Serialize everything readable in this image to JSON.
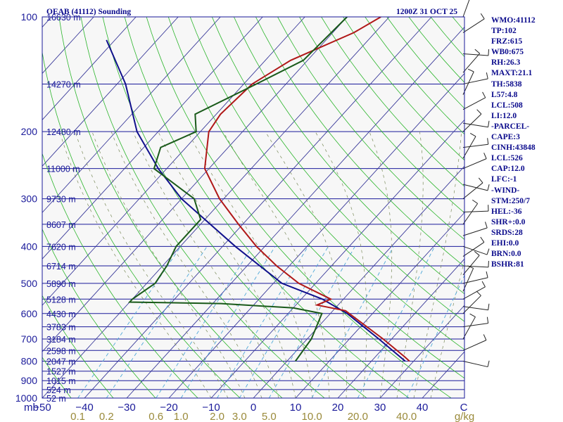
{
  "chart_data": {
    "type": "skew-t",
    "title": "OEAB (41112) Sounding",
    "time": "1200Z 31 OCT 25",
    "y_unit_label": "mb",
    "pressure_levels": [
      100,
      200,
      300,
      400,
      500,
      600,
      700,
      800,
      900,
      1000
    ],
    "pressure_tick_labels": [
      "100",
      "200",
      "300",
      "400",
      "500",
      "600",
      "700",
      "800",
      "900",
      "1000"
    ],
    "temperature_ticks": [
      -50,
      -40,
      -30,
      -20,
      -10,
      0,
      10,
      20,
      30,
      40
    ],
    "temperature_tick_labels": [
      "−50",
      "−40",
      "−30",
      "−20",
      "−10",
      "0",
      "10",
      "20",
      "30",
      "40"
    ],
    "temperature_unit_label": "C",
    "mixing_ratio_labels": [
      "0.1",
      "0.2",
      "0.6",
      "1.0",
      "2.0",
      "3.0",
      "5.0",
      "10.0",
      "20.0",
      "40.0"
    ],
    "mixing_ratio_unit_label": "g/kg",
    "height_labels": [
      {
        "p": 100,
        "text": "16630 m"
      },
      {
        "p": 150,
        "text": "14270 m"
      },
      {
        "p": 200,
        "text": "12480 m"
      },
      {
        "p": 250,
        "text": "11000 m"
      },
      {
        "p": 300,
        "text": "9730 m"
      },
      {
        "p": 350,
        "text": "8607 m"
      },
      {
        "p": 400,
        "text": "7620 m"
      },
      {
        "p": 450,
        "text": "6714 m"
      },
      {
        "p": 500,
        "text": "5890 m"
      },
      {
        "p": 550,
        "text": "5128 m"
      },
      {
        "p": 600,
        "text": "4430 m"
      },
      {
        "p": 650,
        "text": "3783 m"
      },
      {
        "p": 700,
        "text": "3184 m"
      },
      {
        "p": 750,
        "text": "2598 m"
      },
      {
        "p": 800,
        "text": "2047 m"
      },
      {
        "p": 850,
        "text": "1527 m"
      },
      {
        "p": 900,
        "text": "1015 m"
      },
      {
        "p": 950,
        "text": "524 m"
      },
      {
        "p": 1000,
        "text": "52 m"
      }
    ],
    "temperature_profile": [
      {
        "p": 100,
        "t": -52
      },
      {
        "p": 110,
        "t": -55
      },
      {
        "p": 130,
        "t": -64
      },
      {
        "p": 150,
        "t": -68
      },
      {
        "p": 180,
        "t": -69
      },
      {
        "p": 200,
        "t": -68
      },
      {
        "p": 250,
        "t": -61
      },
      {
        "p": 300,
        "t": -51
      },
      {
        "p": 350,
        "t": -41
      },
      {
        "p": 400,
        "t": -32
      },
      {
        "p": 450,
        "t": -23
      },
      {
        "p": 500,
        "t": -14
      },
      {
        "p": 550,
        "t": -3
      },
      {
        "p": 570,
        "t": -5
      },
      {
        "p": 590,
        "t": 3
      },
      {
        "p": 700,
        "t": 18
      },
      {
        "p": 780,
        "t": 27
      },
      {
        "p": 800,
        "t": 29
      }
    ],
    "dewpoint_profile": [
      {
        "p": 100,
        "t": -60
      },
      {
        "p": 130,
        "t": -61
      },
      {
        "p": 150,
        "t": -67
      },
      {
        "p": 180,
        "t": -75
      },
      {
        "p": 200,
        "t": -71
      },
      {
        "p": 220,
        "t": -76
      },
      {
        "p": 250,
        "t": -73
      },
      {
        "p": 300,
        "t": -57
      },
      {
        "p": 340,
        "t": -51
      },
      {
        "p": 400,
        "t": -51
      },
      {
        "p": 450,
        "t": -49
      },
      {
        "p": 500,
        "t": -48
      },
      {
        "p": 550,
        "t": -50
      },
      {
        "p": 560,
        "t": -50
      },
      {
        "p": 565,
        "t": -28
      },
      {
        "p": 580,
        "t": -10
      },
      {
        "p": 600,
        "t": -2
      },
      {
        "p": 700,
        "t": 1
      },
      {
        "p": 800,
        "t": 2
      }
    ],
    "parcel_profile": [
      {
        "p": 800,
        "t": 28
      },
      {
        "p": 700,
        "t": 17
      },
      {
        "p": 600,
        "t": 4
      },
      {
        "p": 550,
        "t": -5
      },
      {
        "p": 500,
        "t": -18
      },
      {
        "p": 400,
        "t": -37
      },
      {
        "p": 300,
        "t": -60
      },
      {
        "p": 250,
        "t": -72
      },
      {
        "p": 200,
        "t": -85
      },
      {
        "p": 150,
        "t": -98
      },
      {
        "p": 115,
        "t": -112
      }
    ],
    "wind_levels": [
      100,
      110,
      125,
      140,
      150,
      160,
      175,
      190,
      200,
      220,
      235,
      250,
      275,
      300,
      325,
      350,
      375,
      400,
      425,
      450,
      475,
      500,
      525,
      550,
      575,
      600,
      650,
      700,
      750,
      800
    ]
  },
  "indices": [
    "WMO:41112",
    "TP:102",
    "FRZ:615",
    "WB0:675",
    "RH:26.3",
    "MAXT:21.1",
    "TH:5838",
    "L57:4.8",
    "LCL:508",
    "LI:12.0",
    "-PARCEL-",
    "CAPE:3",
    "CINH:43848",
    "LCL:526",
    "CAP:12.0",
    "LFC:-1",
    "-WIND-",
    "STM:250/7",
    "HEL:-36",
    "SHR+:0.0",
    "SRDS:28",
    "EHI:0.0",
    "BRN:0.0",
    "BSHR:81"
  ],
  "colors": {
    "frame": "#1a1a9a",
    "isobar": "#1a1a9a",
    "isotherm": "#3a3a9a",
    "dry_adiabat": "#2bb52b",
    "moist_adiabat": "#7a8a5a",
    "mixing_ratio": "#4fa8d8",
    "temperature": "#b01818",
    "dewpoint": "#1a5a1a",
    "parcel": "#10108c",
    "wind": "#222222",
    "text": "#0a0a8c"
  }
}
